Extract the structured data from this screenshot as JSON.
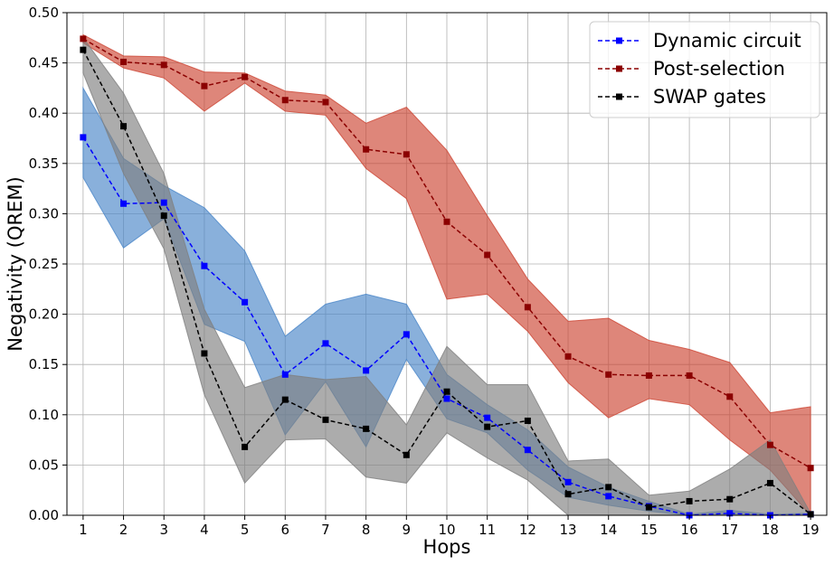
{
  "chart_data": {
    "type": "line",
    "title": "",
    "xlabel": "Hops",
    "ylabel": "Negativity (QREM)",
    "xlim": [
      0.6,
      19.4
    ],
    "ylim": [
      0.0,
      0.5
    ],
    "xticks": [
      1,
      2,
      3,
      4,
      5,
      6,
      7,
      8,
      9,
      10,
      11,
      12,
      13,
      14,
      15,
      16,
      17,
      18,
      19
    ],
    "yticks": [
      0.0,
      0.05,
      0.1,
      0.15,
      0.2,
      0.25,
      0.3,
      0.35,
      0.4,
      0.45,
      0.5
    ],
    "ytick_labels": [
      "0.00",
      "0.05",
      "0.10",
      "0.15",
      "0.20",
      "0.25",
      "0.30",
      "0.35",
      "0.40",
      "0.45",
      "0.50"
    ],
    "grid": true,
    "legend_position": "top-right",
    "x": [
      1,
      2,
      3,
      4,
      5,
      6,
      7,
      8,
      9,
      10,
      11,
      12,
      13,
      14,
      15,
      16,
      17,
      18,
      19
    ],
    "series": [
      {
        "name": "Dynamic circuit",
        "color": "#0000ff",
        "band_color": "#4a86c8",
        "values": [
          0.376,
          0.31,
          0.311,
          0.248,
          0.212,
          0.14,
          0.171,
          0.144,
          0.18,
          0.116,
          0.097,
          0.065,
          0.033,
          0.019,
          0.009,
          0.0,
          0.002,
          0.0,
          0.001
        ],
        "lower": [
          0.336,
          0.266,
          0.295,
          0.19,
          0.173,
          0.08,
          0.133,
          0.068,
          0.155,
          0.096,
          0.082,
          0.045,
          0.018,
          0.01,
          0.004,
          0.0,
          0.0,
          0.0,
          0.0
        ],
        "upper": [
          0.425,
          0.355,
          0.328,
          0.306,
          0.263,
          0.178,
          0.21,
          0.22,
          0.21,
          0.14,
          0.11,
          0.085,
          0.048,
          0.028,
          0.014,
          0.001,
          0.005,
          0.001,
          0.002
        ]
      },
      {
        "name": "Post-selection",
        "color": "#8b0000",
        "band_color": "#cd4533",
        "values": [
          0.474,
          0.451,
          0.448,
          0.427,
          0.436,
          0.413,
          0.411,
          0.364,
          0.359,
          0.292,
          0.259,
          0.207,
          0.158,
          0.14,
          0.139,
          0.139,
          0.118,
          0.07,
          0.047
        ],
        "lower": [
          0.47,
          0.445,
          0.435,
          0.402,
          0.43,
          0.402,
          0.398,
          0.345,
          0.315,
          0.215,
          0.22,
          0.183,
          0.132,
          0.097,
          0.116,
          0.11,
          0.075,
          0.045,
          0.0
        ],
        "upper": [
          0.478,
          0.457,
          0.456,
          0.441,
          0.44,
          0.422,
          0.418,
          0.39,
          0.406,
          0.363,
          0.298,
          0.235,
          0.193,
          0.196,
          0.174,
          0.165,
          0.152,
          0.102,
          0.108
        ]
      },
      {
        "name": "SWAP gates",
        "color": "#000000",
        "band_color": "#808080",
        "values": [
          0.463,
          0.387,
          0.298,
          0.161,
          0.068,
          0.115,
          0.095,
          0.086,
          0.06,
          0.123,
          0.088,
          0.094,
          0.021,
          0.028,
          0.008,
          0.014,
          0.016,
          0.032,
          0.001
        ],
        "lower": [
          0.44,
          0.34,
          0.265,
          0.12,
          0.032,
          0.075,
          0.076,
          0.038,
          0.032,
          0.082,
          0.057,
          0.035,
          0.0,
          0.0,
          0.0,
          0.0,
          0.0,
          0.0,
          0.0
        ],
        "upper": [
          0.475,
          0.42,
          0.34,
          0.205,
          0.127,
          0.14,
          0.135,
          0.138,
          0.09,
          0.168,
          0.13,
          0.13,
          0.054,
          0.056,
          0.02,
          0.024,
          0.046,
          0.075,
          0.002
        ]
      }
    ]
  }
}
